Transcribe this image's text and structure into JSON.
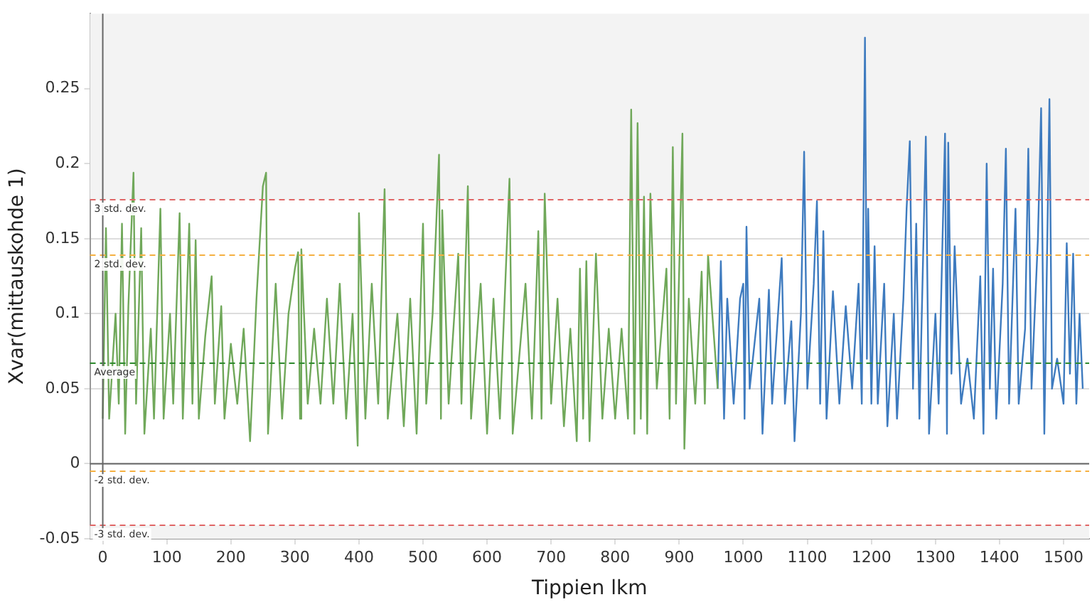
{
  "chart_data": {
    "type": "line",
    "xlabel": "Tippien lkm",
    "ylabel": "Xvar(mittauskohde 1)",
    "xlim": [
      -20,
      1540
    ],
    "ylim": [
      -0.05,
      0.3
    ],
    "xticks": [
      0,
      100,
      200,
      300,
      400,
      500,
      600,
      700,
      800,
      900,
      1000,
      1100,
      1200,
      1300,
      1400,
      1500
    ],
    "yticks": [
      -0.05,
      0,
      0.05,
      0.1,
      0.15,
      0.2,
      0.25
    ],
    "grid": "y",
    "legend": false,
    "marker": "none",
    "line_style": "solid",
    "ref_lines": [
      {
        "axis": "y",
        "value": 0.176,
        "label": "3 std. dev.",
        "color": "#e06666",
        "line_style": "dashed"
      },
      {
        "axis": "y",
        "value": 0.139,
        "label": "2 std. dev.",
        "color": "#f5b041",
        "line_style": "dashed"
      },
      {
        "axis": "y",
        "value": 0.067,
        "label": "Average",
        "color": "#2e8b2e",
        "line_style": "dashed"
      },
      {
        "axis": "y",
        "value": -0.005,
        "label": "-2 std. dev.",
        "color": "#f5b041",
        "line_style": "dashed"
      },
      {
        "axis": "y",
        "value": -0.041,
        "label": "-3 std. dev.",
        "color": "#e06666",
        "line_style": "dashed"
      },
      {
        "axis": "y",
        "value": 0,
        "color": "#666666",
        "line_style": "solid"
      },
      {
        "axis": "x",
        "value": 0,
        "color": "#666666",
        "line_style": "solid"
      }
    ],
    "bands": [
      {
        "axis": "y",
        "from": 0.176,
        "to": 0.3,
        "color": "#f3f3f3"
      },
      {
        "axis": "y",
        "from": -0.05,
        "to": -0.041,
        "color": "#f3f3f3"
      }
    ],
    "series": [
      {
        "color": "#70a85a",
        "x": [
          0,
          5,
          10,
          20,
          25,
          30,
          35,
          40,
          48,
          52,
          60,
          65,
          75,
          80,
          90,
          95,
          105,
          110,
          120,
          125,
          135,
          140,
          145,
          150,
          160,
          170,
          175,
          185,
          190,
          200,
          210,
          220,
          230,
          240,
          250,
          255,
          258,
          270,
          280,
          290,
          300,
          305,
          308,
          310,
          320,
          330,
          340,
          350,
          360,
          370,
          380,
          390,
          398,
          400,
          410,
          420,
          430,
          440,
          445,
          460,
          470,
          480,
          490,
          500,
          505,
          515,
          525,
          528,
          530,
          540,
          555,
          560,
          570,
          575,
          590,
          600,
          610,
          620,
          635,
          640,
          660,
          670,
          680,
          685,
          690,
          700,
          710,
          720,
          730,
          740,
          745,
          750,
          755,
          760,
          770,
          780,
          790,
          800,
          810,
          820,
          825,
          830,
          835,
          840,
          845,
          850,
          855,
          865,
          880,
          885,
          890,
          895,
          905,
          908,
          915,
          925,
          935,
          940,
          945,
          955,
          960
        ],
        "values": [
          0.03,
          0.157,
          0.03,
          0.1,
          0.04,
          0.16,
          0.02,
          0.105,
          0.194,
          0.04,
          0.157,
          0.02,
          0.09,
          0.03,
          0.17,
          0.03,
          0.1,
          0.04,
          0.167,
          0.03,
          0.16,
          0.04,
          0.149,
          0.03,
          0.085,
          0.125,
          0.04,
          0.105,
          0.03,
          0.08,
          0.04,
          0.09,
          0.015,
          0.11,
          0.185,
          0.194,
          0.02,
          0.12,
          0.03,
          0.1,
          0.13,
          0.141,
          0.03,
          0.143,
          0.04,
          0.09,
          0.04,
          0.11,
          0.04,
          0.12,
          0.03,
          0.1,
          0.012,
          0.167,
          0.03,
          0.12,
          0.04,
          0.183,
          0.03,
          0.1,
          0.025,
          0.11,
          0.02,
          0.16,
          0.04,
          0.1,
          0.206,
          0.03,
          0.169,
          0.04,
          0.14,
          0.04,
          0.185,
          0.03,
          0.12,
          0.02,
          0.11,
          0.03,
          0.19,
          0.02,
          0.12,
          0.03,
          0.155,
          0.03,
          0.18,
          0.04,
          0.11,
          0.025,
          0.09,
          0.015,
          0.13,
          0.03,
          0.135,
          0.015,
          0.14,
          0.03,
          0.09,
          0.03,
          0.09,
          0.03,
          0.236,
          0.02,
          0.227,
          0.03,
          0.178,
          0.02,
          0.18,
          0.05,
          0.13,
          0.03,
          0.211,
          0.04,
          0.22,
          0.01,
          0.11,
          0.04,
          0.128,
          0.04,
          0.139,
          0.08,
          0.05
        ]
      },
      {
        "color": "#3e7bbf",
        "x": [
          960,
          965,
          970,
          975,
          985,
          995,
          1000,
          1002,
          1005,
          1010,
          1025,
          1030,
          1040,
          1045,
          1060,
          1065,
          1075,
          1080,
          1090,
          1095,
          1100,
          1110,
          1115,
          1120,
          1125,
          1130,
          1140,
          1150,
          1160,
          1170,
          1180,
          1185,
          1190,
          1193,
          1195,
          1200,
          1205,
          1210,
          1220,
          1225,
          1235,
          1240,
          1250,
          1255,
          1260,
          1265,
          1270,
          1275,
          1285,
          1290,
          1300,
          1305,
          1315,
          1318,
          1320,
          1325,
          1330,
          1340,
          1350,
          1360,
          1370,
          1375,
          1380,
          1385,
          1390,
          1395,
          1405,
          1410,
          1415,
          1425,
          1430,
          1440,
          1445,
          1450,
          1460,
          1465,
          1470,
          1478,
          1482,
          1490,
          1500,
          1505,
          1510,
          1515,
          1520,
          1525,
          1530
        ],
        "values": [
          0.05,
          0.135,
          0.03,
          0.11,
          0.04,
          0.11,
          0.12,
          0.03,
          0.158,
          0.05,
          0.11,
          0.02,
          0.116,
          0.04,
          0.137,
          0.04,
          0.095,
          0.015,
          0.1,
          0.208,
          0.05,
          0.12,
          0.175,
          0.04,
          0.155,
          0.03,
          0.115,
          0.04,
          0.105,
          0.05,
          0.12,
          0.04,
          0.284,
          0.07,
          0.17,
          0.04,
          0.145,
          0.04,
          0.12,
          0.025,
          0.1,
          0.03,
          0.11,
          0.17,
          0.215,
          0.05,
          0.16,
          0.03,
          0.218,
          0.02,
          0.1,
          0.04,
          0.22,
          0.02,
          0.214,
          0.06,
          0.145,
          0.04,
          0.07,
          0.03,
          0.125,
          0.02,
          0.2,
          0.05,
          0.13,
          0.03,
          0.12,
          0.21,
          0.04,
          0.17,
          0.04,
          0.09,
          0.21,
          0.05,
          0.15,
          0.237,
          0.02,
          0.243,
          0.05,
          0.07,
          0.04,
          0.147,
          0.06,
          0.14,
          0.04,
          0.1,
          0.05
        ]
      }
    ]
  }
}
